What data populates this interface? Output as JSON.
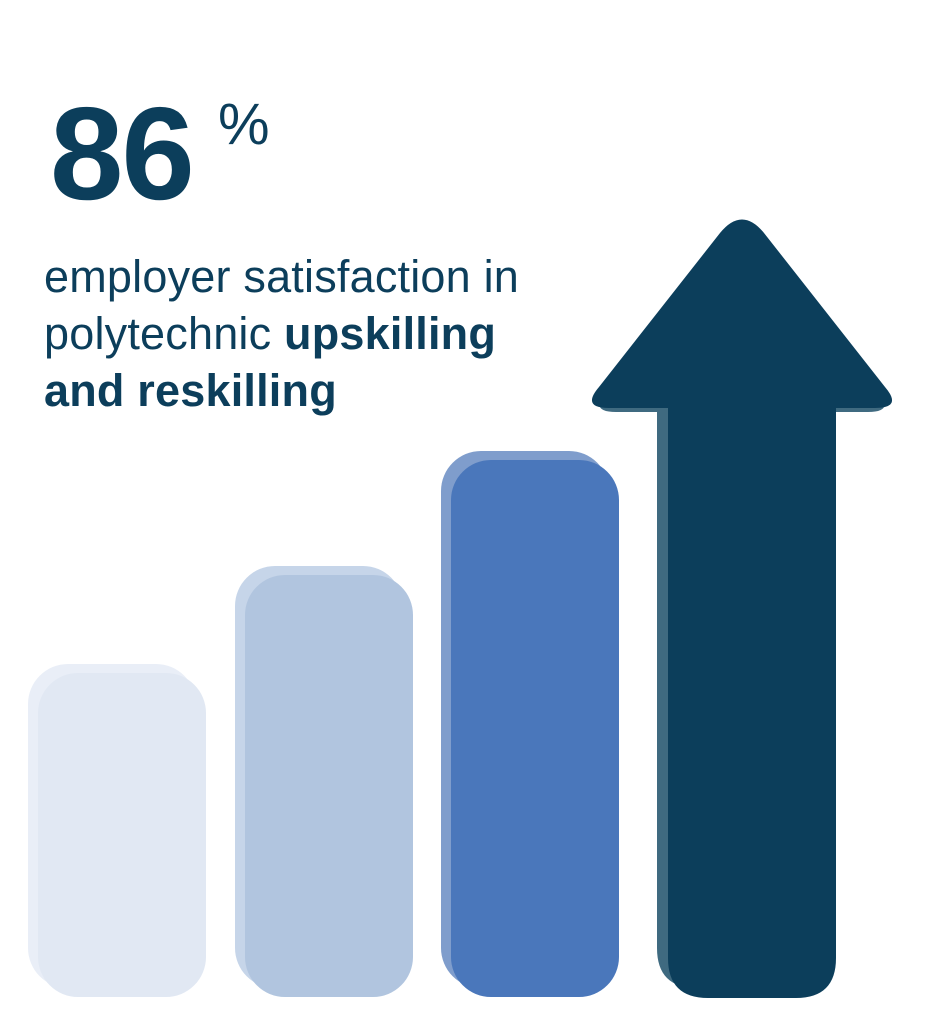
{
  "headline": {
    "value": "86",
    "unit": "%"
  },
  "caption": {
    "line1": "employer satisfaction in",
    "line2_regular": "polytechnic ",
    "line2_bold": "upskilling",
    "line3_bold": "and reskilling"
  },
  "colors": {
    "text": "#0c3e5b",
    "bar1": "#e1e8f3",
    "bar2": "#b1c5df",
    "bar3": "#4a77bb",
    "arrow": "#0c3e5b"
  },
  "graphic": {
    "type": "rising-bars-with-up-arrow",
    "bar_levels": [
      1,
      2,
      3,
      4
    ]
  }
}
